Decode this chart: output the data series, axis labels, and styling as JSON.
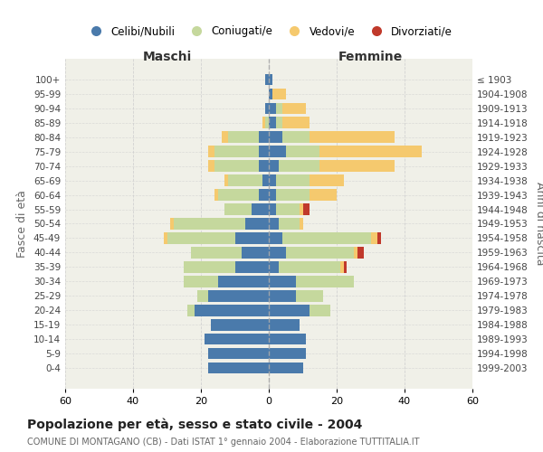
{
  "age_groups": [
    "100+",
    "95-99",
    "90-94",
    "85-89",
    "80-84",
    "75-79",
    "70-74",
    "65-69",
    "60-64",
    "55-59",
    "50-54",
    "45-49",
    "40-44",
    "35-39",
    "30-34",
    "25-29",
    "20-24",
    "15-19",
    "10-14",
    "5-9",
    "0-4"
  ],
  "birth_years": [
    "≤ 1903",
    "1904-1908",
    "1909-1913",
    "1914-1918",
    "1919-1923",
    "1924-1928",
    "1929-1933",
    "1934-1938",
    "1939-1943",
    "1944-1948",
    "1949-1953",
    "1954-1958",
    "1959-1963",
    "1964-1968",
    "1969-1973",
    "1974-1978",
    "1979-1983",
    "1984-1988",
    "1989-1993",
    "1994-1998",
    "1999-2003"
  ],
  "males": {
    "celibi": [
      1,
      0,
      1,
      0,
      3,
      3,
      3,
      2,
      3,
      5,
      7,
      10,
      8,
      10,
      15,
      18,
      22,
      17,
      19,
      18,
      18
    ],
    "coniugati": [
      0,
      0,
      0,
      1,
      9,
      13,
      13,
      10,
      12,
      8,
      21,
      20,
      15,
      15,
      10,
      3,
      2,
      0,
      0,
      0,
      0
    ],
    "vedovi": [
      0,
      0,
      0,
      1,
      2,
      2,
      2,
      1,
      1,
      0,
      1,
      1,
      0,
      0,
      0,
      0,
      0,
      0,
      0,
      0,
      0
    ],
    "divorziati": [
      0,
      0,
      0,
      0,
      0,
      0,
      0,
      0,
      0,
      0,
      0,
      0,
      0,
      0,
      0,
      0,
      0,
      0,
      0,
      0,
      0
    ]
  },
  "females": {
    "nubili": [
      1,
      1,
      2,
      2,
      4,
      5,
      3,
      2,
      2,
      2,
      3,
      4,
      5,
      3,
      8,
      8,
      12,
      9,
      11,
      11,
      10
    ],
    "coniugate": [
      0,
      0,
      2,
      2,
      8,
      10,
      12,
      10,
      10,
      7,
      6,
      26,
      20,
      18,
      17,
      8,
      6,
      0,
      0,
      0,
      0
    ],
    "vedove": [
      0,
      4,
      7,
      8,
      25,
      30,
      22,
      10,
      8,
      1,
      1,
      2,
      1,
      1,
      0,
      0,
      0,
      0,
      0,
      0,
      0
    ],
    "divorziate": [
      0,
      0,
      0,
      0,
      0,
      0,
      0,
      0,
      0,
      2,
      0,
      1,
      2,
      1,
      0,
      0,
      0,
      0,
      0,
      0,
      0
    ]
  },
  "color_celibi": "#4a7aab",
  "color_coniugati": "#c5d89d",
  "color_vedovi": "#f5c96e",
  "color_divorziati": "#c0392b",
  "xlabel_left": "Maschi",
  "xlabel_right": "Femmine",
  "ylabel_left": "Fasce di età",
  "ylabel_right": "Anni di nascita",
  "title": "Popolazione per età, sesso e stato civile - 2004",
  "subtitle": "COMUNE DI MONTAGANO (CB) - Dati ISTAT 1° gennaio 2004 - Elaborazione TUTTITALIA.IT",
  "xlim": 60,
  "legend_labels": [
    "Celibi/Nubili",
    "Coniugati/e",
    "Vedovi/e",
    "Divorziati/e"
  ],
  "bg_color": "#f0f0e8",
  "grid_color": "#cccccc"
}
